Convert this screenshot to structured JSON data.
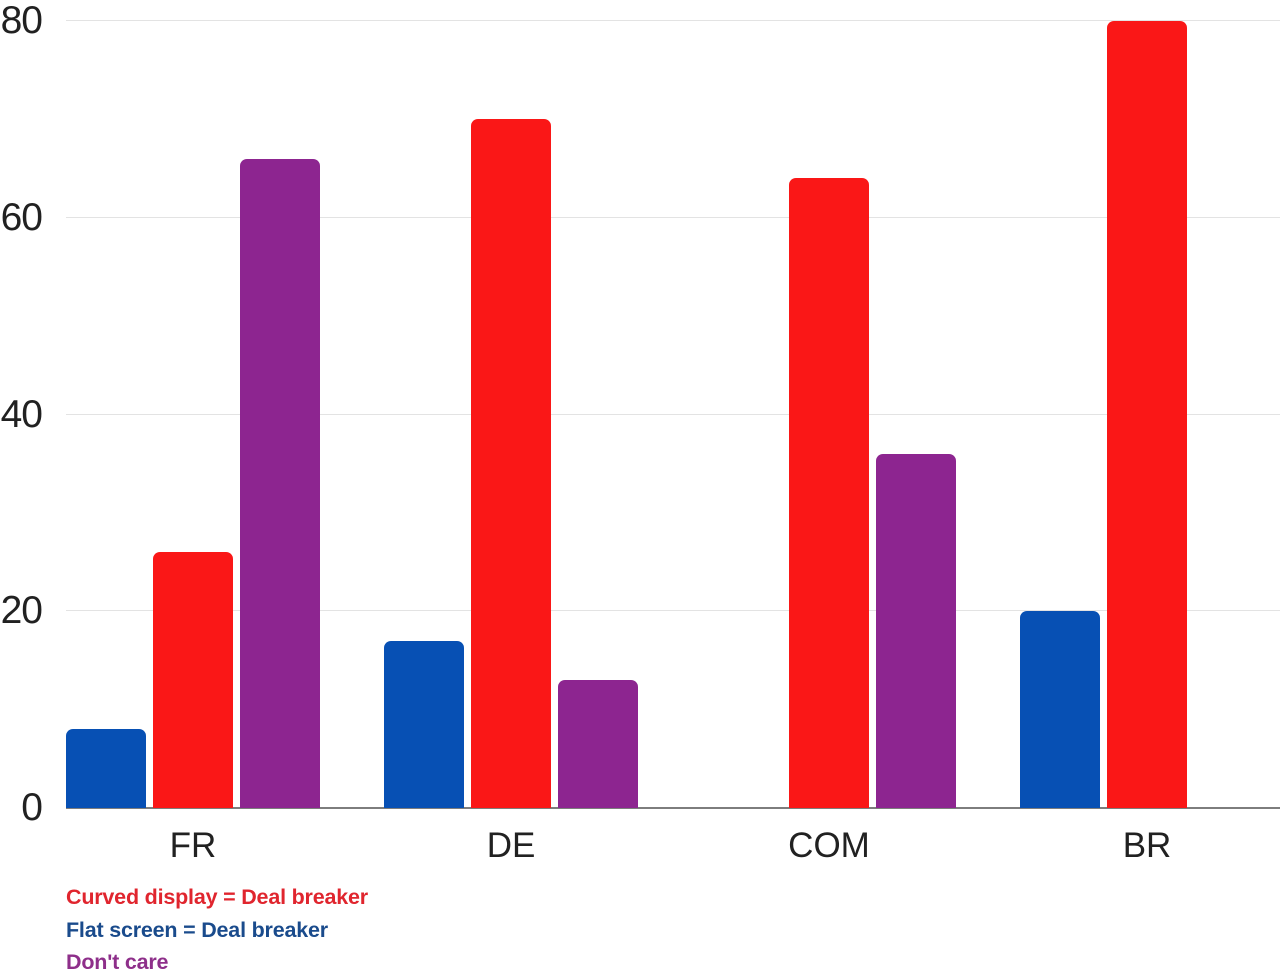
{
  "chart_data": {
    "type": "bar",
    "categories": [
      "FR",
      "DE",
      "COM",
      "BR"
    ],
    "series": [
      {
        "name": "Flat screen = Deal breaker",
        "color": "#0750b4",
        "values": [
          8,
          17,
          0,
          20
        ]
      },
      {
        "name": "Curved display = Deal breaker",
        "color": "#fa1717",
        "values": [
          26,
          70,
          64,
          80
        ]
      },
      {
        "name": "Don't care",
        "color": "#8d2590",
        "values": [
          66,
          13,
          36,
          0
        ]
      }
    ],
    "title": "",
    "xlabel": "",
    "ylabel": "",
    "ylim": [
      0,
      80
    ],
    "yticks": [
      0,
      20,
      40,
      60,
      80
    ],
    "grid": true,
    "bar_style": "rounded-top",
    "legend_position": "bottom-left"
  },
  "legend": {
    "items": [
      {
        "label": "Curved display = Deal breaker",
        "color": "#e0252e"
      },
      {
        "label": "Flat screen = Deal breaker",
        "color": "#1a4b8c"
      },
      {
        "label": "Don't care",
        "color": "#8e2f8a"
      }
    ]
  },
  "colors": {
    "background": "#ffffff",
    "gridline": "#e3e3e3",
    "axis_line": "#7d7d7d",
    "axis_text": "#212121"
  }
}
